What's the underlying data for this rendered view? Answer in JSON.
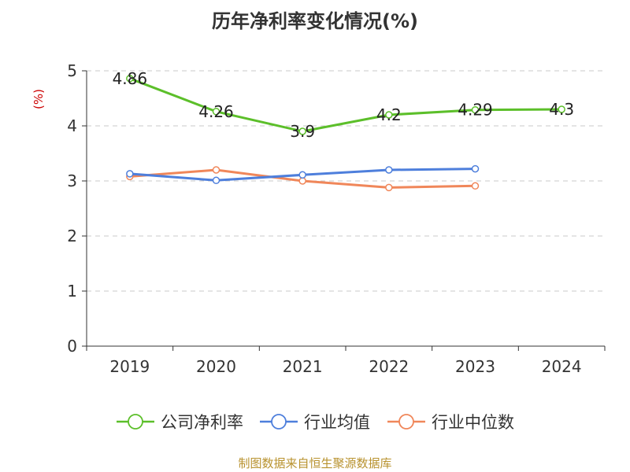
{
  "chart_data": {
    "type": "line",
    "title": "历年净利率变化情况(%)",
    "ylabel": "(%)",
    "categories": [
      "2019",
      "2020",
      "2021",
      "2022",
      "2023",
      "2024"
    ],
    "ylim": [
      0,
      5
    ],
    "yticks": [
      "0",
      "1",
      "2",
      "3",
      "4",
      "5"
    ],
    "grid": true,
    "legend_position": "bottom",
    "series": [
      {
        "name": "公司净利率",
        "color": "#5cbf2a",
        "values": [
          4.86,
          4.26,
          3.9,
          4.2,
          4.29,
          4.3
        ],
        "labels": [
          "4.86",
          "4.26",
          "3.9",
          "4.2",
          "4.29",
          "4.3"
        ]
      },
      {
        "name": "行业均值",
        "color": "#4e7fdc",
        "values": [
          3.13,
          3.01,
          3.11,
          3.2,
          3.22,
          null
        ]
      },
      {
        "name": "行业中位数",
        "color": "#f0875a",
        "values": [
          3.08,
          3.2,
          3.0,
          2.88,
          2.91,
          null
        ]
      }
    ]
  },
  "colors": {
    "ylabel": "#cc0000",
    "axis": "#333333",
    "grid": "#c8c8c8"
  },
  "footer": {
    "source": "制图数据来自恒生聚源数据库"
  }
}
